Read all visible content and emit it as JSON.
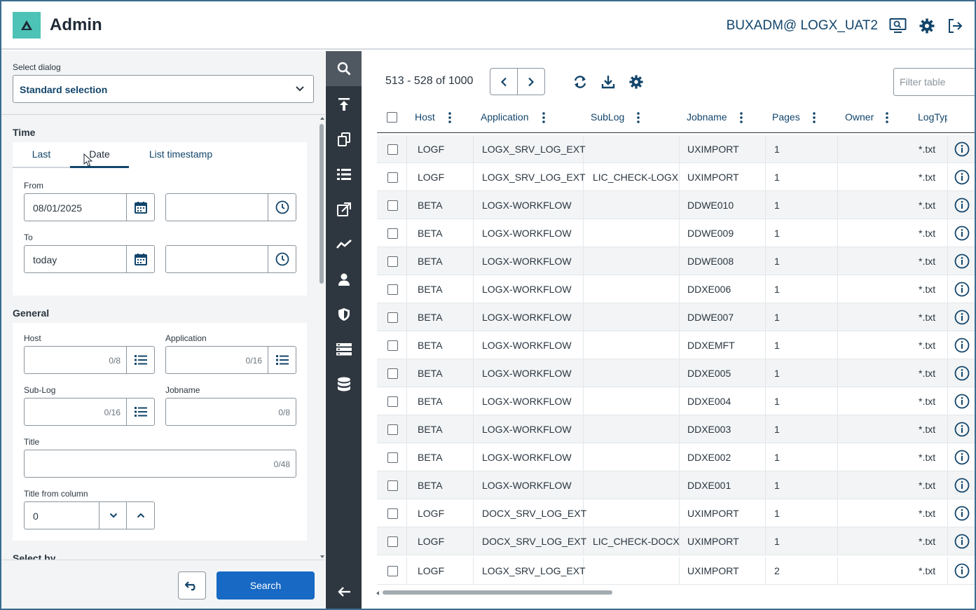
{
  "header": {
    "app_title": "Admin",
    "user": "BUXADM@ LOGX_UAT2",
    "icons": [
      "monitor-search-icon",
      "gear-icon",
      "logout-icon"
    ]
  },
  "left_panel": {
    "select_dialog_label": "Select dialog",
    "select_dialog_value": "Standard selection",
    "time": {
      "title": "Time",
      "tabs": [
        "Last",
        "Date",
        "List timestamp"
      ],
      "active_tab": "Date",
      "from_label": "From",
      "from_date": "08/01/2025",
      "from_time": "",
      "to_label": "To",
      "to_date": "today",
      "to_time": ""
    },
    "general": {
      "title": "General",
      "host_label": "Host",
      "host_count": "0/8",
      "application_label": "Application",
      "application_count": "0/16",
      "sublog_label": "Sub-Log",
      "sublog_count": "0/16",
      "jobname_label": "Jobname",
      "jobname_count": "0/8",
      "title_label": "Title",
      "title_count": "0/48",
      "title_from_column_label": "Title from column",
      "title_from_column_value": "0"
    },
    "select_by_title": "Select by",
    "search_button": "Search"
  },
  "nav_rail": {
    "items": [
      "search-icon",
      "upload-icon",
      "copy-icon",
      "list-icon",
      "external-link-icon",
      "trend-icon",
      "user-icon",
      "shield-icon",
      "server-icon",
      "database-icon"
    ],
    "active": "search-icon",
    "collapse_icon": "arrow-left-icon"
  },
  "table": {
    "range": "513 - 528 of 1000",
    "filter_placeholder": "Filter table",
    "columns": [
      "Host",
      "Application",
      "SubLog",
      "Jobname",
      "Pages",
      "Owner",
      "LogTyp"
    ],
    "rows": [
      {
        "host": "LOGF",
        "application": "LOGX_SRV_LOG_EXT",
        "sublog": "",
        "jobname": "UXIMPORT",
        "pages": "1",
        "owner": "",
        "logtype": "*.txt"
      },
      {
        "host": "LOGF",
        "application": "LOGX_SRV_LOG_EXT",
        "sublog": "LIC_CHECK-LOGX",
        "jobname": "UXIMPORT",
        "pages": "1",
        "owner": "",
        "logtype": "*.txt"
      },
      {
        "host": "BETA",
        "application": "LOGX-WORKFLOW",
        "sublog": "",
        "jobname": "DDWE010",
        "pages": "1",
        "owner": "",
        "logtype": "*.txt"
      },
      {
        "host": "BETA",
        "application": "LOGX-WORKFLOW",
        "sublog": "",
        "jobname": "DDWE009",
        "pages": "1",
        "owner": "",
        "logtype": "*.txt"
      },
      {
        "host": "BETA",
        "application": "LOGX-WORKFLOW",
        "sublog": "",
        "jobname": "DDWE008",
        "pages": "1",
        "owner": "",
        "logtype": "*.txt"
      },
      {
        "host": "BETA",
        "application": "LOGX-WORKFLOW",
        "sublog": "",
        "jobname": "DDXE006",
        "pages": "1",
        "owner": "",
        "logtype": "*.txt"
      },
      {
        "host": "BETA",
        "application": "LOGX-WORKFLOW",
        "sublog": "",
        "jobname": "DDWE007",
        "pages": "1",
        "owner": "",
        "logtype": "*.txt"
      },
      {
        "host": "BETA",
        "application": "LOGX-WORKFLOW",
        "sublog": "",
        "jobname": "DDXEMFT",
        "pages": "1",
        "owner": "",
        "logtype": "*.txt"
      },
      {
        "host": "BETA",
        "application": "LOGX-WORKFLOW",
        "sublog": "",
        "jobname": "DDXE005",
        "pages": "1",
        "owner": "",
        "logtype": "*.txt"
      },
      {
        "host": "BETA",
        "application": "LOGX-WORKFLOW",
        "sublog": "",
        "jobname": "DDXE004",
        "pages": "1",
        "owner": "",
        "logtype": "*.txt"
      },
      {
        "host": "BETA",
        "application": "LOGX-WORKFLOW",
        "sublog": "",
        "jobname": "DDXE003",
        "pages": "1",
        "owner": "",
        "logtype": "*.txt"
      },
      {
        "host": "BETA",
        "application": "LOGX-WORKFLOW",
        "sublog": "",
        "jobname": "DDXE002",
        "pages": "1",
        "owner": "",
        "logtype": "*.txt"
      },
      {
        "host": "BETA",
        "application": "LOGX-WORKFLOW",
        "sublog": "",
        "jobname": "DDXE001",
        "pages": "1",
        "owner": "",
        "logtype": "*.txt"
      },
      {
        "host": "LOGF",
        "application": "DOCX_SRV_LOG_EXT",
        "sublog": "",
        "jobname": "UXIMPORT",
        "pages": "1",
        "owner": "",
        "logtype": "*.txt"
      },
      {
        "host": "LOGF",
        "application": "DOCX_SRV_LOG_EXT",
        "sublog": "LIC_CHECK-DOCX",
        "jobname": "UXIMPORT",
        "pages": "1",
        "owner": "",
        "logtype": "*.txt"
      },
      {
        "host": "LOGF",
        "application": "LOGX_SRV_LOG_EXT",
        "sublog": "",
        "jobname": "UXIMPORT",
        "pages": "2",
        "owner": "",
        "logtype": "*.txt"
      }
    ]
  },
  "colors": {
    "accent": "#12456b",
    "logo": "#4cc3b6",
    "primary_button": "#1769c4",
    "nav_rail": "#2e3740"
  }
}
